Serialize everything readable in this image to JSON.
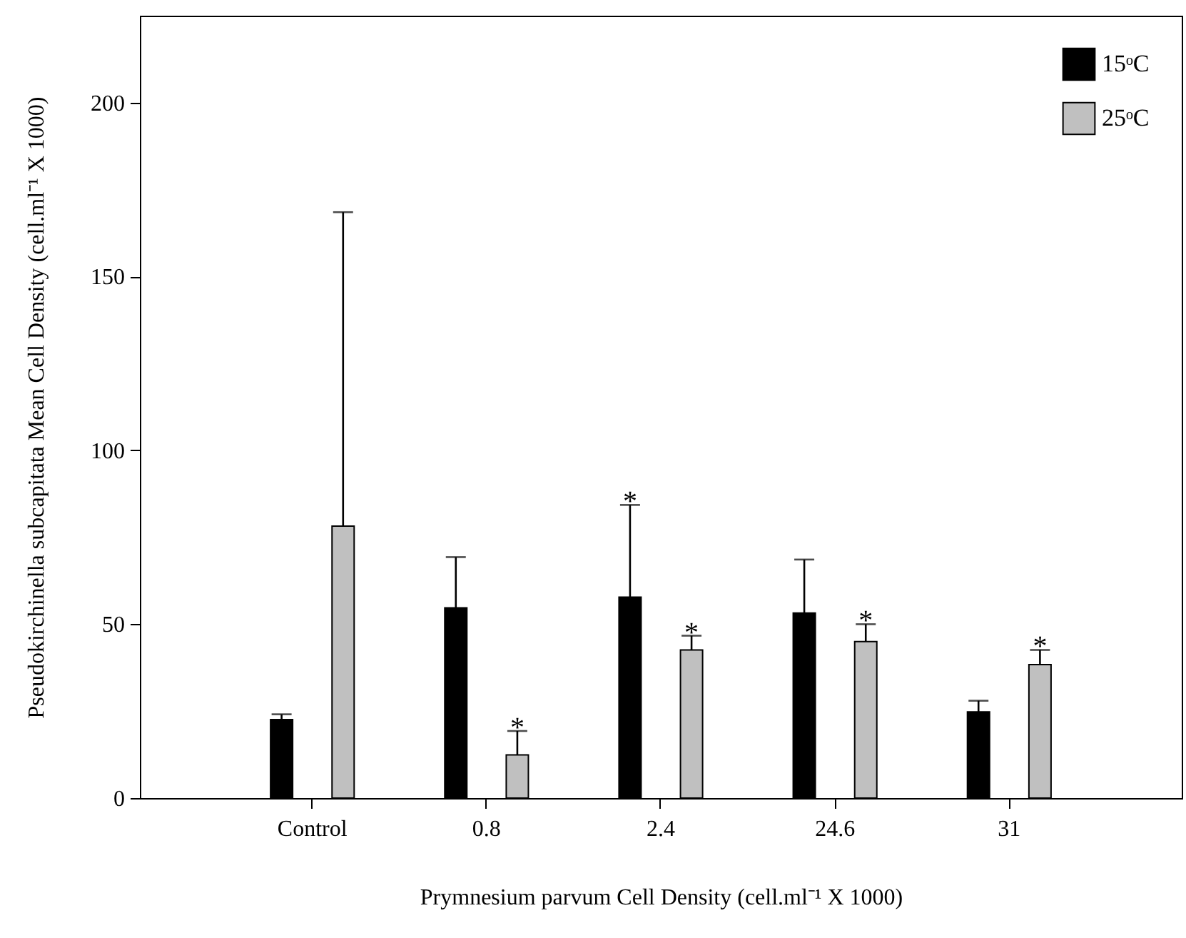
{
  "chart_data": {
    "type": "bar",
    "xlabel": "Prymnesium parvum Cell Density (cell.ml⁻¹ X 1000)",
    "ylabel": "Pseudokirchinella subcapitata  Mean Cell Density (cell.ml⁻¹ X 1000)",
    "categories": [
      "Control",
      "0.8",
      "2.4",
      "24.6",
      "31"
    ],
    "series": [
      {
        "name": "15ᵒC",
        "color": "#000000",
        "values": [
          22.6,
          54.7,
          57.8,
          53.2,
          24.8
        ],
        "errors": [
          [
            22.6,
            24.1
          ],
          [
            54.7,
            69.3
          ],
          [
            57.8,
            84.3
          ],
          [
            53.2,
            68.6
          ],
          [
            24.8,
            28.0
          ]
        ],
        "value_labels": [
          null,
          null,
          "*",
          null,
          null
        ]
      },
      {
        "name": "25ᵒC",
        "color": "#c0c0c0",
        "values": [
          78.2,
          12.4,
          42.6,
          45.0,
          38.4
        ],
        "errors": [
          [
            78.2,
            168.5
          ],
          [
            12.4,
            19.3
          ],
          [
            42.6,
            46.7
          ],
          [
            45.0,
            50.0
          ],
          [
            38.4,
            42.6
          ]
        ],
        "value_labels": [
          null,
          "*",
          "*",
          "*",
          "*"
        ]
      }
    ],
    "ylim": [
      0,
      225
    ],
    "yticks": [
      0,
      50,
      100,
      150,
      200
    ],
    "grid": false,
    "legend": "top right"
  }
}
